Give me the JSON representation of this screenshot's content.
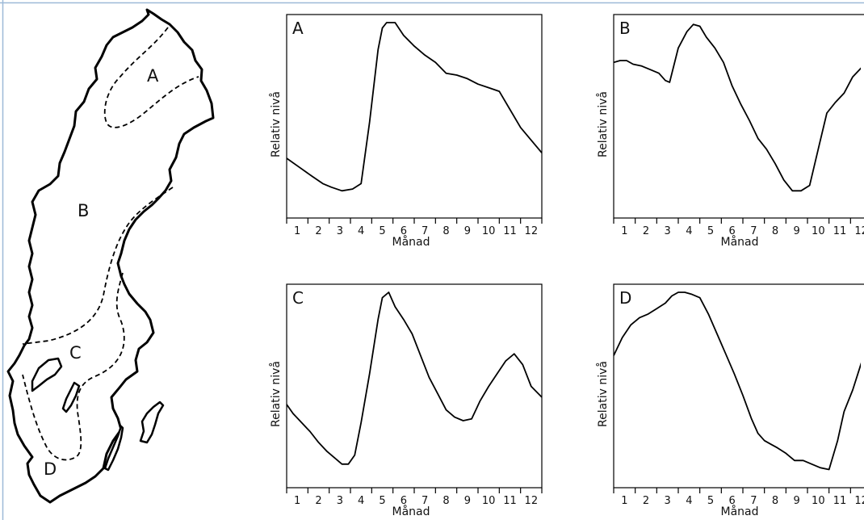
{
  "map": {
    "region_labels": [
      "A",
      "B",
      "C",
      "D"
    ]
  },
  "axis_text": {
    "ylabel": "Relativ nivå",
    "xlabel": "Månad"
  },
  "chart_data": [
    {
      "type": "line",
      "panel": "A",
      "ylabel": "Relativ nivå",
      "xlabel": "Månad",
      "x_ticks": [
        "1",
        "2",
        "3",
        "4",
        "5",
        "6",
        "7",
        "8",
        "9",
        "10",
        "11",
        "12"
      ],
      "xlim": [
        0.5,
        12.5
      ],
      "ylim": [
        0,
        1
      ],
      "grid": false,
      "x": [
        0.5,
        1.1,
        1.7,
        2.2,
        2.6,
        3.1,
        3.6,
        4.0,
        4.4,
        4.8,
        5.0,
        5.2,
        5.6,
        6.0,
        6.5,
        7.0,
        7.5,
        8.0,
        8.5,
        9.0,
        9.5,
        10.0,
        10.5,
        11.0,
        11.5,
        12.0,
        12.5
      ],
      "y": [
        0.25,
        0.2,
        0.15,
        0.11,
        0.09,
        0.07,
        0.08,
        0.11,
        0.45,
        0.85,
        0.97,
        1.0,
        1.0,
        0.93,
        0.87,
        0.82,
        0.78,
        0.72,
        0.71,
        0.69,
        0.66,
        0.64,
        0.62,
        0.52,
        0.42,
        0.35,
        0.28
      ]
    },
    {
      "type": "line",
      "panel": "B",
      "ylabel": "Relativ nivå",
      "xlabel": "Månad",
      "x_ticks": [
        "1",
        "2",
        "3",
        "4",
        "5",
        "6",
        "7",
        "8",
        "9",
        "10",
        "11",
        "12"
      ],
      "xlim": [
        0.5,
        12.5
      ],
      "ylim": [
        0,
        1
      ],
      "grid": false,
      "x": [
        0.5,
        0.8,
        1.1,
        1.4,
        1.8,
        2.2,
        2.6,
        2.9,
        3.1,
        3.5,
        3.9,
        4.2,
        4.5,
        4.8,
        5.2,
        5.6,
        6.0,
        6.4,
        6.8,
        7.2,
        7.6,
        8.0,
        8.4,
        8.8,
        9.2,
        9.6,
        10.0,
        10.4,
        10.8,
        11.2,
        11.6,
        12.0,
        12.5
      ],
      "y": [
        0.78,
        0.79,
        0.79,
        0.77,
        0.76,
        0.74,
        0.72,
        0.68,
        0.67,
        0.86,
        0.95,
        0.99,
        0.98,
        0.92,
        0.86,
        0.78,
        0.65,
        0.55,
        0.46,
        0.36,
        0.3,
        0.22,
        0.13,
        0.07,
        0.07,
        0.1,
        0.3,
        0.5,
        0.56,
        0.61,
        0.7,
        0.75,
        0.75
      ]
    },
    {
      "type": "line",
      "panel": "C",
      "ylabel": "Relativ nivå",
      "xlabel": "Månad",
      "x_ticks": [
        "1",
        "2",
        "3",
        "4",
        "5",
        "6",
        "7",
        "8",
        "9",
        "10",
        "11",
        "12"
      ],
      "xlim": [
        0.5,
        12.5
      ],
      "ylim": [
        0,
        1
      ],
      "grid": false,
      "x": [
        0.5,
        0.8,
        1.2,
        1.6,
        2.0,
        2.4,
        2.8,
        3.1,
        3.4,
        3.7,
        4.0,
        4.4,
        4.8,
        5.0,
        5.3,
        5.6,
        6.0,
        6.4,
        6.8,
        7.2,
        7.6,
        8.0,
        8.4,
        8.8,
        9.2,
        9.6,
        10.0,
        10.4,
        10.8,
        11.2,
        11.6,
        12.0,
        12.5
      ],
      "y": [
        0.38,
        0.33,
        0.28,
        0.23,
        0.17,
        0.12,
        0.08,
        0.05,
        0.05,
        0.1,
        0.28,
        0.55,
        0.85,
        0.97,
        1.0,
        0.92,
        0.85,
        0.77,
        0.65,
        0.53,
        0.44,
        0.35,
        0.31,
        0.29,
        0.3,
        0.4,
        0.48,
        0.55,
        0.62,
        0.66,
        0.6,
        0.48,
        0.42
      ]
    },
    {
      "type": "line",
      "panel": "D",
      "ylabel": "Relativ nivå",
      "xlabel": "Månad",
      "x_ticks": [
        "1",
        "2",
        "3",
        "4",
        "5",
        "6",
        "7",
        "8",
        "9",
        "10",
        "11",
        "12"
      ],
      "xlim": [
        0.5,
        12.5
      ],
      "ylim": [
        0,
        1
      ],
      "grid": false,
      "x": [
        0.5,
        0.9,
        1.3,
        1.7,
        2.1,
        2.5,
        2.9,
        3.2,
        3.5,
        3.8,
        4.1,
        4.5,
        4.9,
        5.3,
        5.7,
        6.1,
        6.5,
        6.9,
        7.2,
        7.5,
        7.8,
        8.1,
        8.5,
        8.9,
        9.3,
        9.7,
        10.1,
        10.5,
        10.9,
        11.2,
        11.6,
        12.0,
        12.5
      ],
      "y": [
        0.65,
        0.75,
        0.82,
        0.86,
        0.88,
        0.91,
        0.94,
        0.98,
        1.0,
        1.0,
        0.99,
        0.97,
        0.88,
        0.77,
        0.66,
        0.55,
        0.43,
        0.3,
        0.22,
        0.18,
        0.16,
        0.14,
        0.11,
        0.07,
        0.07,
        0.05,
        0.03,
        0.02,
        0.18,
        0.34,
        0.46,
        0.61,
        0.68
      ]
    }
  ]
}
